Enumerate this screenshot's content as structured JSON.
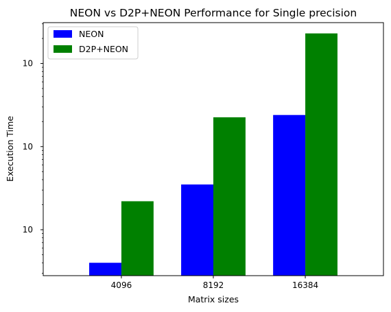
{
  "chart_data": {
    "type": "bar",
    "title": "NEON vs D2P+NEON Performance for Single precision",
    "xlabel": "Matrix sizes",
    "ylabel": "Execution Time",
    "yscale": "log",
    "ylim": [
      28,
      31000
    ],
    "categories": [
      "4096",
      "8192",
      "16384"
    ],
    "series": [
      {
        "name": "NEON",
        "color": "#0000ff",
        "values": [
          40,
          350,
          2400
        ]
      },
      {
        "name": "D2P+NEON",
        "color": "#008000",
        "values": [
          220,
          2250,
          23000
        ]
      }
    ],
    "yticks": [
      {
        "value": 100,
        "base": "10",
        "exp": "2"
      },
      {
        "value": 1000,
        "base": "10",
        "exp": "3"
      },
      {
        "value": 10000,
        "base": "10",
        "exp": "4"
      }
    ],
    "legend_position": "top-left",
    "grid": false
  }
}
